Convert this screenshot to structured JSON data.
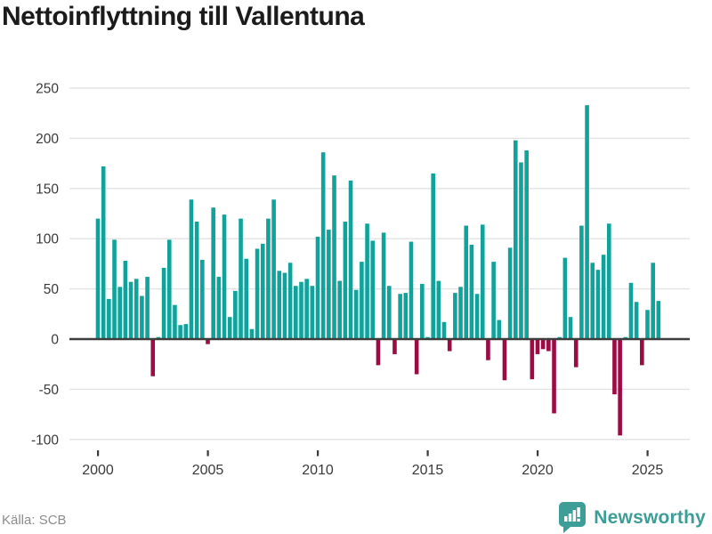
{
  "title": "Nettoinflyttning till Vallentuna",
  "source": "Källa: SCB",
  "brand": {
    "name": "Newsworthy"
  },
  "colors": {
    "positive": "#10a39b",
    "negative": "#9b0b44",
    "grid": "#e3e3e3",
    "axis": "#3d3d3d",
    "tick_label": "#3a3a3a",
    "title": "#1b1b1b",
    "source": "#8c8c8c",
    "brand": "#3d9e98"
  },
  "chart_data": {
    "type": "bar",
    "title": "Nettoinflyttning till Vallentuna",
    "frequency": "quarterly",
    "start_year": 2000,
    "start_quarter": 1,
    "xlabel": "",
    "ylabel": "",
    "y_ticks": [
      250,
      200,
      150,
      100,
      50,
      0,
      -50,
      -100
    ],
    "x_ticks": [
      2000,
      2005,
      2010,
      2015,
      2020,
      2025
    ],
    "ylim": [
      -115,
      265
    ],
    "grid": true,
    "legend": "none",
    "values": [
      120,
      172,
      40,
      99,
      52,
      78,
      57,
      60,
      43,
      62,
      -37,
      2,
      71,
      99,
      34,
      14,
      15,
      139,
      117,
      79,
      -5,
      131,
      62,
      124,
      22,
      48,
      120,
      80,
      10,
      90,
      95,
      120,
      139,
      68,
      66,
      76,
      53,
      57,
      60,
      53,
      102,
      186,
      109,
      163,
      58,
      117,
      158,
      49,
      77,
      115,
      98,
      -26,
      106,
      53,
      -15,
      45,
      46,
      97,
      -35,
      55,
      2,
      165,
      58,
      17,
      -12,
      46,
      52,
      113,
      94,
      45,
      114,
      -21,
      77,
      19,
      -41,
      91,
      198,
      176,
      188,
      -40,
      -15,
      -10,
      -12,
      -74,
      2,
      81,
      22,
      -28,
      113,
      233,
      76,
      69,
      84,
      115,
      -55,
      -96,
      2,
      56,
      37,
      -26,
      29,
      76,
      38
    ]
  }
}
